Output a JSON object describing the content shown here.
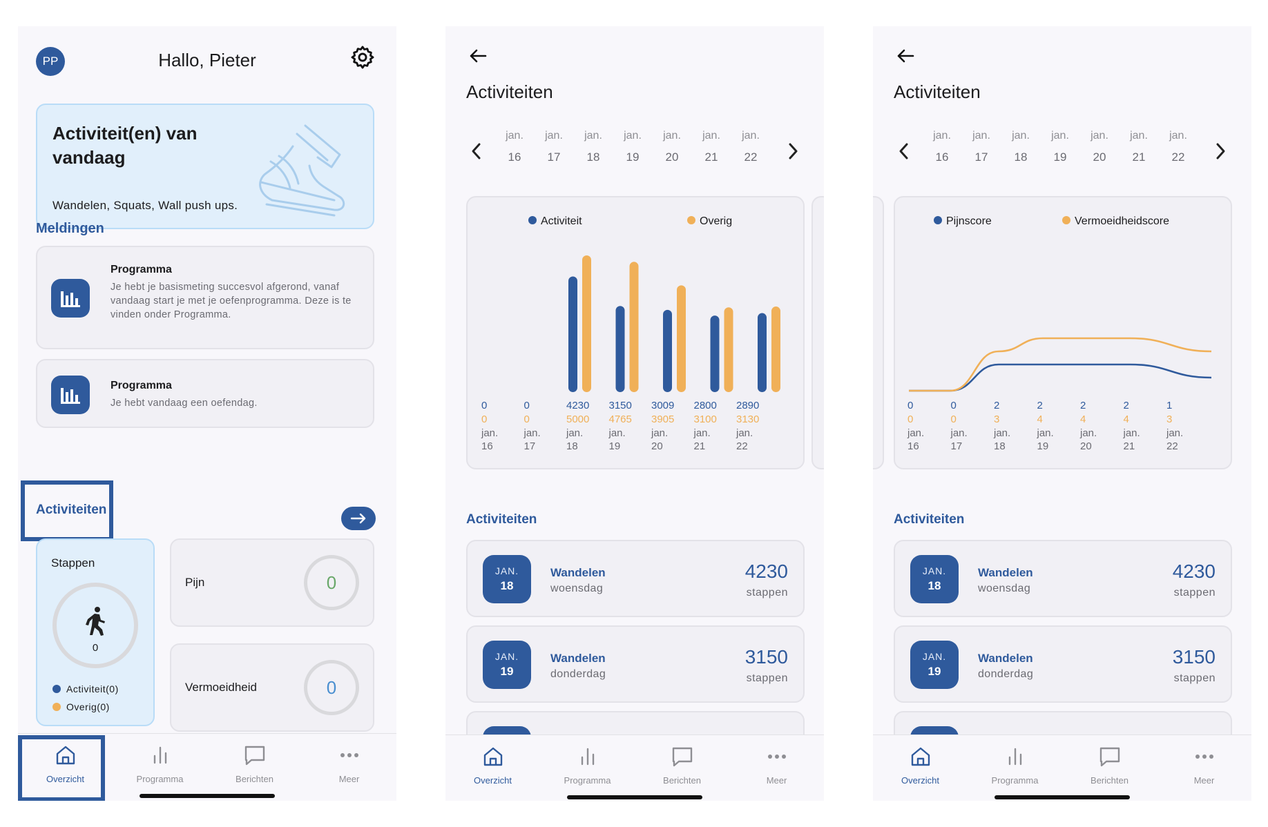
{
  "overview": {
    "avatar_initials": "PP",
    "greeting": "Hallo, Pieter",
    "today_card": {
      "title": "Activiteit(en) van vandaag",
      "subtitle": "Wandelen, Squats, Wall push ups."
    },
    "notifications_title": "Meldingen",
    "notifications": [
      {
        "title": "Programma",
        "text": "Je hebt je basismeting succesvol afgerond, vanaf vandaag start je met je oefenprogramma. Deze is te vinden onder Programma."
      },
      {
        "title": "Programma",
        "text": "Je hebt vandaag een oefendag."
      }
    ],
    "activities_title": "Activiteiten",
    "steps": {
      "label": "Stappen",
      "value": "0",
      "legend": [
        "Activiteit(0)",
        "Overig(0)"
      ]
    },
    "pain": {
      "label": "Pijn",
      "value": "0"
    },
    "fatigue": {
      "label": "Vermoeidheid",
      "value": "0"
    }
  },
  "nav": {
    "items": [
      "Overzicht",
      "Programma",
      "Berichten",
      "Meer"
    ],
    "active_index": 0
  },
  "activities_page": {
    "title": "Activiteiten",
    "week": [
      {
        "month": "jan.",
        "day": "16"
      },
      {
        "month": "jan.",
        "day": "17"
      },
      {
        "month": "jan.",
        "day": "18"
      },
      {
        "month": "jan.",
        "day": "19"
      },
      {
        "month": "jan.",
        "day": "20"
      },
      {
        "month": "jan.",
        "day": "21"
      },
      {
        "month": "jan.",
        "day": "22"
      }
    ],
    "list_title": "Activiteiten",
    "list": [
      {
        "badge_month": "JAN.",
        "badge_day": "18",
        "name": "Wandelen",
        "weekday": "woensdag",
        "value": "4230",
        "unit": "stappen"
      },
      {
        "badge_month": "JAN.",
        "badge_day": "19",
        "name": "Wandelen",
        "weekday": "donderdag",
        "value": "3150",
        "unit": "stappen"
      }
    ]
  },
  "colors": {
    "primary": "#2f5a9c",
    "secondary": "#f0b058",
    "light_blue_bg": "#e1effb"
  },
  "chart_data": [
    {
      "type": "bar",
      "categories": [
        "jan. 16",
        "jan. 17",
        "jan. 18",
        "jan. 19",
        "jan. 20",
        "jan. 21",
        "jan. 22"
      ],
      "series": [
        {
          "name": "Activiteit",
          "values": [
            0,
            0,
            4230,
            3150,
            3009,
            2800,
            2890
          ],
          "color": "#2f5a9c"
        },
        {
          "name": "Overig",
          "values": [
            0,
            0,
            5000,
            4765,
            3905,
            3100,
            3130
          ],
          "color": "#f0b058"
        }
      ],
      "ylim": [
        0,
        5000
      ],
      "grid": false,
      "legend": "top"
    },
    {
      "type": "line",
      "categories": [
        "jan. 16",
        "jan. 17",
        "jan. 18",
        "jan. 19",
        "jan. 20",
        "jan. 21",
        "jan. 22"
      ],
      "series": [
        {
          "name": "Pijnscore",
          "values": [
            0,
            0,
            2,
            2,
            2,
            2,
            1
          ],
          "color": "#2f5a9c"
        },
        {
          "name": "Vermoeidheidscore",
          "values": [
            0,
            0,
            3,
            4,
            4,
            4,
            3
          ],
          "color": "#f0b058"
        }
      ],
      "grid": false,
      "legend": "top"
    }
  ]
}
